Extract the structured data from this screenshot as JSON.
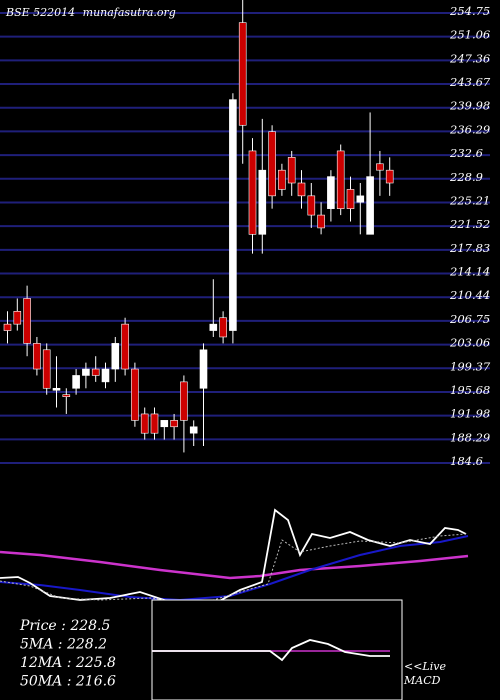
{
  "header": {
    "ticker": "BSE 522014",
    "site": "munafasutra.org"
  },
  "chart_data": {
    "type": "candlestick",
    "price_axis": {
      "ticks": [
        "254.75",
        "251.06",
        "247.36",
        "243.67",
        "239.98",
        "236.29",
        "232.6",
        "228.9",
        "225.21",
        "221.52",
        "217.83",
        "214.14",
        "210.44",
        "206.75",
        "203.06",
        "199.37",
        "195.68",
        "191.98",
        "188.29",
        "184.6"
      ],
      "min": 184.6,
      "max": 254.75
    },
    "candles": [
      {
        "o": 204,
        "h": 207,
        "l": 202,
        "c": 205,
        "up": false
      },
      {
        "o": 207,
        "h": 209,
        "l": 204,
        "c": 205,
        "up": false
      },
      {
        "o": 209,
        "h": 211,
        "l": 200,
        "c": 202,
        "up": false
      },
      {
        "o": 202,
        "h": 203,
        "l": 197,
        "c": 198,
        "up": false
      },
      {
        "o": 201,
        "h": 202,
        "l": 194,
        "c": 195,
        "up": false
      },
      {
        "o": 195,
        "h": 200,
        "l": 192,
        "c": 195,
        "up": true
      },
      {
        "o": 194,
        "h": 195,
        "l": 191,
        "c": 194,
        "up": false
      },
      {
        "o": 195,
        "h": 198,
        "l": 194,
        "c": 197,
        "up": true
      },
      {
        "o": 197,
        "h": 199,
        "l": 195,
        "c": 198,
        "up": true
      },
      {
        "o": 198,
        "h": 200,
        "l": 196,
        "c": 197,
        "up": false
      },
      {
        "o": 196,
        "h": 199,
        "l": 195,
        "c": 198,
        "up": true
      },
      {
        "o": 198,
        "h": 203,
        "l": 196,
        "c": 202,
        "up": true
      },
      {
        "o": 205,
        "h": 206,
        "l": 197,
        "c": 198,
        "up": false
      },
      {
        "o": 198,
        "h": 199,
        "l": 189,
        "c": 190,
        "up": false
      },
      {
        "o": 191,
        "h": 192,
        "l": 187,
        "c": 188,
        "up": false
      },
      {
        "o": 191,
        "h": 192,
        "l": 187,
        "c": 188,
        "up": false
      },
      {
        "o": 189,
        "h": 190,
        "l": 187,
        "c": 190,
        "up": true
      },
      {
        "o": 190,
        "h": 191,
        "l": 187,
        "c": 189,
        "up": false
      },
      {
        "o": 196,
        "h": 197,
        "l": 185,
        "c": 190,
        "up": false
      },
      {
        "o": 188,
        "h": 190,
        "l": 186,
        "c": 189,
        "up": true
      },
      {
        "o": 195,
        "h": 202,
        "l": 186,
        "c": 201,
        "up": true
      },
      {
        "o": 204,
        "h": 212,
        "l": 203,
        "c": 205,
        "up": true
      },
      {
        "o": 206,
        "h": 207,
        "l": 202,
        "c": 203,
        "up": false
      },
      {
        "o": 204,
        "h": 241,
        "l": 202,
        "c": 240,
        "up": true
      },
      {
        "o": 252,
        "h": 258,
        "l": 230,
        "c": 236,
        "up": false
      },
      {
        "o": 232,
        "h": 234,
        "l": 216,
        "c": 219,
        "up": false
      },
      {
        "o": 219,
        "h": 237,
        "l": 216,
        "c": 229,
        "up": true
      },
      {
        "o": 235,
        "h": 236,
        "l": 223,
        "c": 225,
        "up": false
      },
      {
        "o": 229,
        "h": 230,
        "l": 225,
        "c": 226,
        "up": false
      },
      {
        "o": 231,
        "h": 232,
        "l": 225,
        "c": 227,
        "up": false
      },
      {
        "o": 227,
        "h": 229,
        "l": 223,
        "c": 225,
        "up": false
      },
      {
        "o": 225,
        "h": 227,
        "l": 220,
        "c": 222,
        "up": false
      },
      {
        "o": 222,
        "h": 224,
        "l": 219,
        "c": 220,
        "up": false
      },
      {
        "o": 223,
        "h": 229,
        "l": 221,
        "c": 228,
        "up": true
      },
      {
        "o": 232,
        "h": 233,
        "l": 222,
        "c": 223,
        "up": false
      },
      {
        "o": 226,
        "h": 228,
        "l": 221,
        "c": 223,
        "up": false
      },
      {
        "o": 224,
        "h": 227,
        "l": 219,
        "c": 225,
        "up": true
      },
      {
        "o": 219,
        "h": 238,
        "l": 219,
        "c": 228,
        "up": true
      },
      {
        "o": 230,
        "h": 232,
        "l": 225,
        "c": 229,
        "up": false
      },
      {
        "o": 229,
        "h": 231,
        "l": 225,
        "c": 227,
        "up": false
      }
    ],
    "stats": [
      {
        "label": "Price",
        "value": "228.5"
      },
      {
        "label": "5MA",
        "value": "228.2"
      },
      {
        "label": "12MA",
        "value": "225.8"
      },
      {
        "label": "50MA",
        "value": "216.6"
      }
    ],
    "macd_label": "<<Live MACD",
    "colors": {
      "up": "#ffffff",
      "down": "#cc0000",
      "grid": "#1f1f7a",
      "ma50": "#cc33cc",
      "ma12": "#1818c8",
      "macd_signal": "#cc33cc"
    }
  }
}
